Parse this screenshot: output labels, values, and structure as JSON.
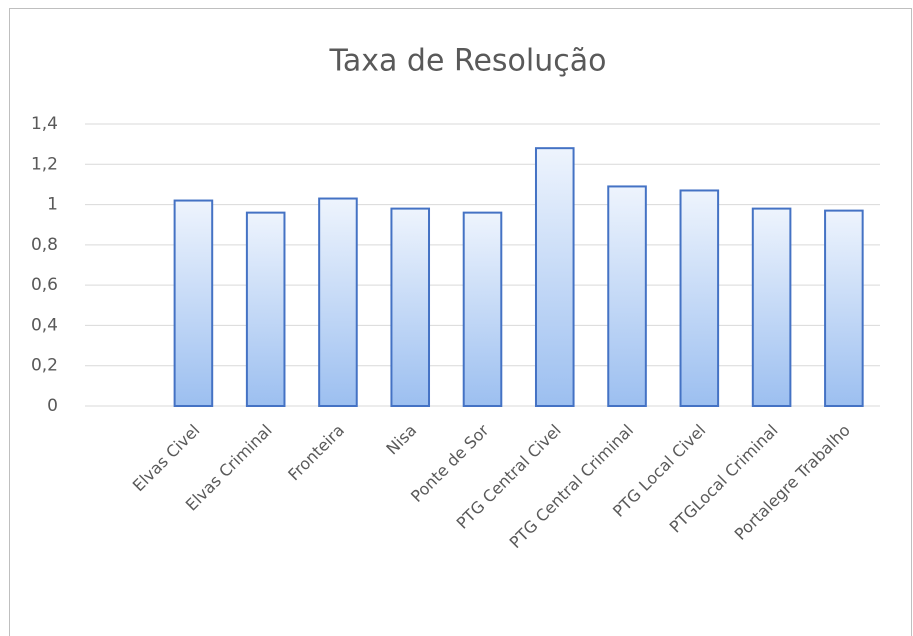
{
  "chart_data": {
    "type": "bar",
    "title": "Taxa de  Resolução",
    "categories": [
      null,
      "Elvas Civel",
      "Elvas Criminal",
      "Fronteira",
      "Nisa",
      "Ponte de Sor",
      "PTG Central Civel",
      "PTG Central Criminal",
      "PTG Local Civel",
      "PTGLocal Criminal",
      "Portalegre Trabalho"
    ],
    "values": [
      null,
      1.02,
      0.96,
      1.03,
      0.98,
      0.96,
      1.28,
      1.09,
      1.07,
      0.98,
      0.97
    ],
    "color": "#4472c4",
    "ylim": [
      0,
      1.4
    ],
    "yticks": [
      0,
      {
        "value": 0.2,
        "label": "0,2"
      },
      {
        "value": 0.4,
        "label": "0,4"
      },
      {
        "value": 0.6,
        "label": "0,6"
      },
      {
        "value": 0.8,
        "label": "0,8"
      },
      1,
      {
        "value": 1.2,
        "label": "1,2"
      },
      {
        "value": 1.4,
        "label": "1,4"
      }
    ],
    "grid": true
  }
}
